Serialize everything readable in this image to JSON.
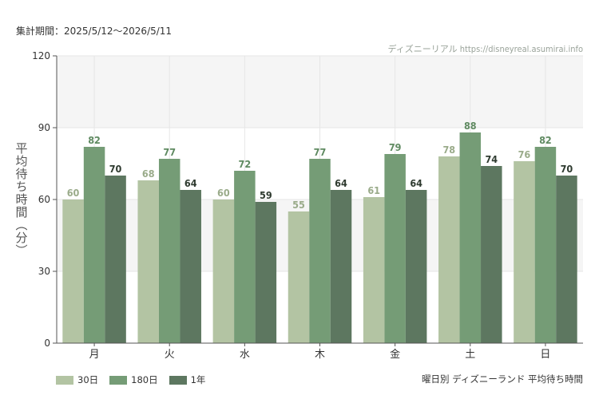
{
  "header": {
    "period": "集計期間：2025/5/12〜2026/5/11",
    "watermark": "ディズニーリアル https://disneyreal.asumirai.info"
  },
  "footer": {
    "note": "曜日別 ディズニーランド 平均待ち時間"
  },
  "chart_data": {
    "type": "bar",
    "ylabel": "平均待ち時間（分）",
    "ylim": [
      0,
      120
    ],
    "yticks": [
      0,
      30,
      60,
      90,
      120
    ],
    "grid": true,
    "legend_position": "bottom-left",
    "categories": [
      "月",
      "火",
      "水",
      "木",
      "金",
      "土",
      "日"
    ],
    "series": [
      {
        "name": "30日",
        "color": "#b3c4a3",
        "label_color": "#9aab8a",
        "values": [
          60,
          68,
          60,
          55,
          61,
          78,
          76
        ]
      },
      {
        "name": "180日",
        "color": "#759c76",
        "label_color": "#5f8a61",
        "values": [
          82,
          77,
          72,
          77,
          79,
          88,
          82
        ]
      },
      {
        "name": "1年",
        "color": "#5d7760",
        "label_color": "#2f3b30",
        "values": [
          70,
          64,
          59,
          64,
          64,
          74,
          70
        ]
      }
    ]
  }
}
